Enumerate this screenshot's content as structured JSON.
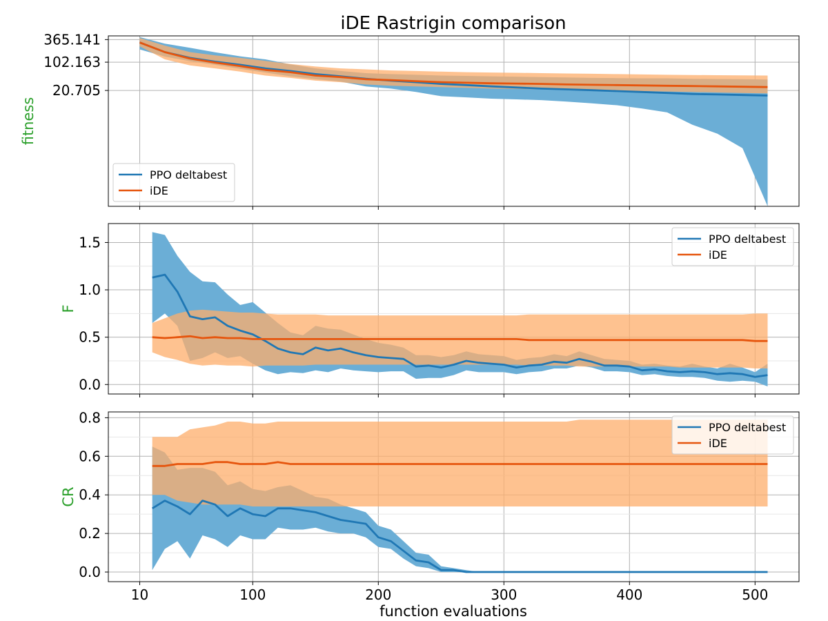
{
  "title": "iDE Rastrigin comparison",
  "xlabel": "function evaluations",
  "colors": {
    "ppo": "#1f77b4",
    "ppo_band": "#6baed6",
    "ide": "#e6550d",
    "ide_band": "#fdae6b",
    "overlap": "#8c8c8c",
    "ylabel": "#2ca02c",
    "grid": "#b0b0b0"
  },
  "x_ticks": [
    "10",
    "100",
    "200",
    "300",
    "400",
    "500"
  ],
  "chart_data": [
    {
      "type": "line",
      "ylabel": "fitness",
      "yscale": "log",
      "ylim_note": "log axis, roughly 0.03 to 450",
      "yticks": [
        "365.141",
        "102.163",
        "20.705"
      ],
      "legend": {
        "position": "lower-left",
        "entries": [
          "PPO deltabest",
          "iDE"
        ]
      },
      "grid": true,
      "x": [
        10,
        30,
        50,
        70,
        90,
        110,
        130,
        150,
        170,
        190,
        210,
        230,
        250,
        270,
        290,
        310,
        330,
        350,
        370,
        390,
        410,
        430,
        450,
        470,
        490,
        510
      ],
      "series": [
        {
          "name": "PPO deltabest",
          "mean": [
            310,
            180,
            130,
            105,
            88,
            72,
            62,
            52,
            46,
            40,
            36,
            33,
            30,
            28,
            26,
            24.5,
            23,
            22,
            21,
            20,
            19,
            18,
            17,
            16.5,
            16,
            15.5
          ],
          "lower": [
            210,
            140,
            108,
            88,
            70,
            57,
            46,
            39,
            34,
            26,
            23,
            19,
            15,
            14,
            13,
            12.5,
            12,
            11,
            10,
            9,
            7.5,
            6,
            3,
            1.8,
            0.8,
            0.03
          ],
          "upper": [
            420,
            290,
            230,
            178,
            142,
            120,
            90,
            72,
            62,
            55,
            52,
            50,
            48,
            47,
            46,
            45,
            44,
            43,
            42,
            41.5,
            41,
            41,
            40,
            39.5,
            39,
            38.5
          ]
        },
        {
          "name": "iDE",
          "mean": [
            310,
            180,
            125,
            100,
            82,
            66,
            58,
            48,
            44,
            39,
            37,
            35,
            33,
            32,
            31,
            30.5,
            30,
            29,
            28.5,
            28,
            27.5,
            27,
            26.5,
            26,
            25.5,
            25
          ],
          "lower": [
            250,
            120,
            85,
            72,
            60,
            48,
            42,
            36,
            33,
            29,
            27,
            26,
            25,
            24,
            23,
            22.5,
            22,
            21.5,
            21,
            20.5,
            20,
            19.5,
            19,
            18.5,
            18,
            17.5
          ],
          "upper": [
            400,
            260,
            180,
            150,
            130,
            110,
            92,
            80,
            72,
            68,
            64,
            62,
            60,
            58,
            57,
            56,
            55,
            54,
            53,
            52,
            51,
            50,
            49.5,
            49,
            48.5,
            48
          ]
        }
      ]
    },
    {
      "type": "line",
      "ylabel": "F",
      "ylim": [
        -0.1,
        1.7
      ],
      "yticks": [
        "0.0",
        "0.5",
        "1.0",
        "1.5"
      ],
      "legend": {
        "position": "top-right",
        "entries": [
          "PPO deltabest",
          "iDE"
        ]
      },
      "grid": true,
      "x": [
        20,
        30,
        40,
        50,
        60,
        70,
        80,
        90,
        100,
        110,
        120,
        130,
        140,
        150,
        160,
        170,
        180,
        190,
        200,
        210,
        220,
        230,
        240,
        250,
        260,
        270,
        280,
        290,
        300,
        310,
        320,
        330,
        340,
        350,
        360,
        370,
        380,
        390,
        400,
        410,
        420,
        430,
        440,
        450,
        460,
        470,
        480,
        490,
        500,
        510
      ],
      "series": [
        {
          "name": "PPO deltabest",
          "mean": [
            1.13,
            1.16,
            0.98,
            0.72,
            0.69,
            0.71,
            0.62,
            0.57,
            0.53,
            0.46,
            0.38,
            0.34,
            0.32,
            0.39,
            0.36,
            0.38,
            0.34,
            0.31,
            0.29,
            0.28,
            0.27,
            0.19,
            0.2,
            0.18,
            0.21,
            0.25,
            0.23,
            0.22,
            0.21,
            0.18,
            0.2,
            0.21,
            0.24,
            0.23,
            0.27,
            0.24,
            0.2,
            0.2,
            0.19,
            0.15,
            0.16,
            0.14,
            0.13,
            0.14,
            0.13,
            0.11,
            0.12,
            0.11,
            0.08,
            0.1
          ],
          "lower": [
            0.65,
            0.75,
            0.62,
            0.25,
            0.28,
            0.34,
            0.28,
            0.3,
            0.22,
            0.15,
            0.11,
            0.13,
            0.12,
            0.15,
            0.13,
            0.17,
            0.15,
            0.14,
            0.13,
            0.14,
            0.14,
            0.06,
            0.07,
            0.07,
            0.1,
            0.15,
            0.13,
            0.13,
            0.13,
            0.11,
            0.13,
            0.14,
            0.17,
            0.17,
            0.2,
            0.18,
            0.14,
            0.14,
            0.13,
            0.1,
            0.11,
            0.09,
            0.08,
            0.08,
            0.07,
            0.04,
            0.03,
            0.04,
            0.03,
            -0.02
          ],
          "upper": [
            1.61,
            1.58,
            1.36,
            1.19,
            1.09,
            1.08,
            0.95,
            0.84,
            0.87,
            0.76,
            0.65,
            0.55,
            0.52,
            0.62,
            0.59,
            0.58,
            0.53,
            0.48,
            0.44,
            0.42,
            0.39,
            0.31,
            0.31,
            0.29,
            0.31,
            0.35,
            0.32,
            0.31,
            0.3,
            0.26,
            0.28,
            0.29,
            0.32,
            0.3,
            0.35,
            0.31,
            0.27,
            0.26,
            0.25,
            0.21,
            0.22,
            0.2,
            0.19,
            0.22,
            0.19,
            0.17,
            0.22,
            0.18,
            0.13,
            0.22
          ]
        },
        {
          "name": "iDE",
          "mean": [
            0.5,
            0.49,
            0.5,
            0.51,
            0.49,
            0.5,
            0.49,
            0.49,
            0.48,
            0.48,
            0.48,
            0.48,
            0.48,
            0.48,
            0.48,
            0.48,
            0.48,
            0.48,
            0.48,
            0.48,
            0.48,
            0.48,
            0.48,
            0.48,
            0.48,
            0.48,
            0.48,
            0.48,
            0.48,
            0.48,
            0.47,
            0.47,
            0.47,
            0.47,
            0.47,
            0.47,
            0.47,
            0.47,
            0.47,
            0.47,
            0.47,
            0.47,
            0.47,
            0.47,
            0.47,
            0.47,
            0.47,
            0.47,
            0.46,
            0.46
          ],
          "lower": [
            0.34,
            0.29,
            0.26,
            0.22,
            0.2,
            0.21,
            0.2,
            0.2,
            0.19,
            0.2,
            0.2,
            0.2,
            0.2,
            0.21,
            0.21,
            0.21,
            0.21,
            0.21,
            0.21,
            0.21,
            0.21,
            0.21,
            0.21,
            0.21,
            0.21,
            0.21,
            0.21,
            0.21,
            0.21,
            0.21,
            0.2,
            0.2,
            0.2,
            0.2,
            0.19,
            0.19,
            0.19,
            0.19,
            0.19,
            0.19,
            0.19,
            0.19,
            0.18,
            0.18,
            0.18,
            0.18,
            0.18,
            0.18,
            0.17,
            0.17
          ],
          "upper": [
            0.65,
            0.7,
            0.75,
            0.78,
            0.79,
            0.78,
            0.77,
            0.76,
            0.76,
            0.75,
            0.74,
            0.74,
            0.74,
            0.74,
            0.73,
            0.73,
            0.73,
            0.73,
            0.73,
            0.73,
            0.73,
            0.73,
            0.73,
            0.73,
            0.73,
            0.73,
            0.73,
            0.73,
            0.73,
            0.73,
            0.74,
            0.74,
            0.74,
            0.74,
            0.74,
            0.74,
            0.74,
            0.74,
            0.74,
            0.74,
            0.74,
            0.74,
            0.74,
            0.74,
            0.74,
            0.74,
            0.74,
            0.74,
            0.75,
            0.75
          ]
        }
      ]
    },
    {
      "type": "line",
      "ylabel": "CR",
      "ylim": [
        -0.05,
        0.83
      ],
      "yticks": [
        "0.0",
        "0.2",
        "0.4",
        "0.6",
        "0.8"
      ],
      "legend": {
        "position": "top-right",
        "entries": [
          "PPO deltabest",
          "iDE"
        ]
      },
      "grid": true,
      "x": [
        20,
        30,
        40,
        50,
        60,
        70,
        80,
        90,
        100,
        110,
        120,
        130,
        140,
        150,
        160,
        170,
        180,
        190,
        200,
        210,
        220,
        230,
        240,
        250,
        260,
        270,
        280,
        290,
        300,
        310,
        320,
        330,
        340,
        350,
        360,
        370,
        380,
        390,
        400,
        410,
        420,
        430,
        440,
        450,
        460,
        470,
        480,
        490,
        500,
        510
      ],
      "series": [
        {
          "name": "PPO deltabest",
          "mean": [
            0.33,
            0.37,
            0.34,
            0.3,
            0.37,
            0.35,
            0.29,
            0.33,
            0.3,
            0.29,
            0.33,
            0.33,
            0.32,
            0.31,
            0.29,
            0.27,
            0.26,
            0.25,
            0.18,
            0.16,
            0.11,
            0.06,
            0.05,
            0.01,
            0.01,
            0.0,
            0.0,
            0.0,
            0.0,
            0.0,
            0.0,
            0.0,
            0.0,
            0.0,
            0.0,
            0.0,
            0.0,
            0.0,
            0.0,
            0.0,
            0.0,
            0.0,
            0.0,
            0.0,
            0.0,
            0.0,
            0.0,
            0.0,
            0.0,
            0.0
          ],
          "lower": [
            0.01,
            0.12,
            0.16,
            0.07,
            0.19,
            0.17,
            0.13,
            0.19,
            0.17,
            0.17,
            0.23,
            0.22,
            0.22,
            0.23,
            0.21,
            0.2,
            0.2,
            0.18,
            0.13,
            0.12,
            0.07,
            0.03,
            0.02,
            0.0,
            0.0,
            0.0,
            0.0,
            0.0,
            0.0,
            0.0,
            0.0,
            0.0,
            0.0,
            0.0,
            0.0,
            0.0,
            0.0,
            0.0,
            0.0,
            0.0,
            0.0,
            0.0,
            0.0,
            0.0,
            0.0,
            0.0,
            0.0,
            0.0,
            0.0,
            0.0
          ],
          "upper": [
            0.65,
            0.62,
            0.53,
            0.54,
            0.54,
            0.52,
            0.45,
            0.47,
            0.43,
            0.42,
            0.44,
            0.45,
            0.42,
            0.39,
            0.38,
            0.35,
            0.33,
            0.31,
            0.24,
            0.22,
            0.16,
            0.1,
            0.09,
            0.03,
            0.02,
            0.01,
            0.0,
            0.0,
            0.0,
            0.0,
            0.0,
            0.0,
            0.0,
            0.0,
            0.0,
            0.0,
            0.0,
            0.0,
            0.0,
            0.0,
            0.0,
            0.0,
            0.0,
            0.0,
            0.0,
            0.0,
            0.0,
            0.0,
            0.0,
            0.0
          ]
        },
        {
          "name": "iDE",
          "mean": [
            0.55,
            0.55,
            0.56,
            0.56,
            0.56,
            0.57,
            0.57,
            0.56,
            0.56,
            0.56,
            0.57,
            0.56,
            0.56,
            0.56,
            0.56,
            0.56,
            0.56,
            0.56,
            0.56,
            0.56,
            0.56,
            0.56,
            0.56,
            0.56,
            0.56,
            0.56,
            0.56,
            0.56,
            0.56,
            0.56,
            0.56,
            0.56,
            0.56,
            0.56,
            0.56,
            0.56,
            0.56,
            0.56,
            0.56,
            0.56,
            0.56,
            0.56,
            0.56,
            0.56,
            0.56,
            0.56,
            0.56,
            0.56,
            0.56,
            0.56
          ],
          "lower": [
            0.4,
            0.4,
            0.37,
            0.36,
            0.35,
            0.35,
            0.35,
            0.35,
            0.34,
            0.34,
            0.34,
            0.34,
            0.34,
            0.34,
            0.34,
            0.34,
            0.34,
            0.34,
            0.34,
            0.34,
            0.34,
            0.34,
            0.34,
            0.34,
            0.34,
            0.34,
            0.34,
            0.34,
            0.34,
            0.34,
            0.34,
            0.34,
            0.34,
            0.34,
            0.34,
            0.34,
            0.34,
            0.34,
            0.34,
            0.34,
            0.34,
            0.34,
            0.34,
            0.34,
            0.34,
            0.34,
            0.34,
            0.34,
            0.34,
            0.34
          ],
          "upper": [
            0.7,
            0.7,
            0.7,
            0.74,
            0.75,
            0.76,
            0.78,
            0.78,
            0.77,
            0.77,
            0.78,
            0.78,
            0.78,
            0.78,
            0.78,
            0.78,
            0.78,
            0.78,
            0.78,
            0.78,
            0.78,
            0.78,
            0.78,
            0.78,
            0.78,
            0.78,
            0.78,
            0.78,
            0.78,
            0.78,
            0.78,
            0.78,
            0.78,
            0.78,
            0.79,
            0.79,
            0.79,
            0.79,
            0.79,
            0.79,
            0.79,
            0.79,
            0.79,
            0.79,
            0.79,
            0.79,
            0.79,
            0.79,
            0.79,
            0.79
          ]
        }
      ]
    }
  ]
}
